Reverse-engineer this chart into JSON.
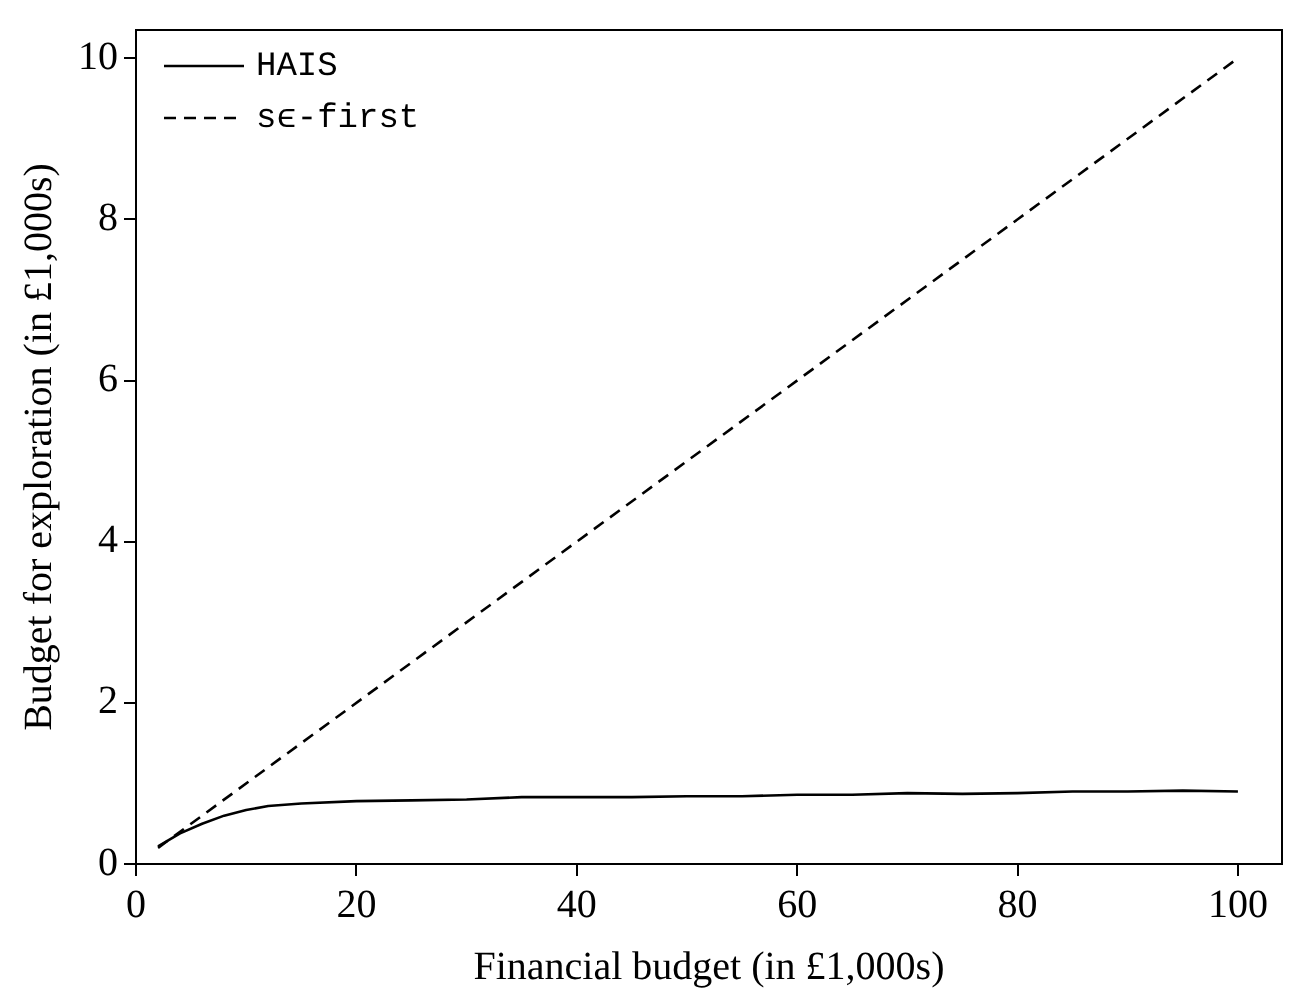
{
  "chart_data": {
    "type": "line",
    "xlabel": "Financial budget (in £1,000s)",
    "ylabel": "Budget for exploration (in £1,000s)",
    "xlim": [
      0,
      104
    ],
    "xticks": [
      0,
      20,
      40,
      60,
      80,
      100
    ],
    "ylim": [
      0,
      10.35
    ],
    "yticks": [
      0,
      2,
      4,
      6,
      8,
      10
    ],
    "grid": false,
    "legend": "top left",
    "marker": "none",
    "series": [
      {
        "name": "HAIS",
        "color": "#000000",
        "line_style": "solid",
        "x": [
          2,
          4,
          6,
          8,
          10,
          12,
          15,
          20,
          25,
          30,
          35,
          40,
          45,
          50,
          55,
          60,
          65,
          70,
          75,
          80,
          85,
          90,
          95,
          100
        ],
        "values": [
          0.22,
          0.38,
          0.5,
          0.6,
          0.67,
          0.72,
          0.75,
          0.78,
          0.79,
          0.8,
          0.83,
          0.83,
          0.83,
          0.84,
          0.84,
          0.86,
          0.86,
          0.88,
          0.87,
          0.88,
          0.9,
          0.9,
          0.91,
          0.9
        ]
      },
      {
        "name": "sϵ-first",
        "color": "#000000",
        "line_style": "dashed",
        "x": [
          2,
          100
        ],
        "values": [
          0.2,
          10
        ]
      }
    ]
  }
}
